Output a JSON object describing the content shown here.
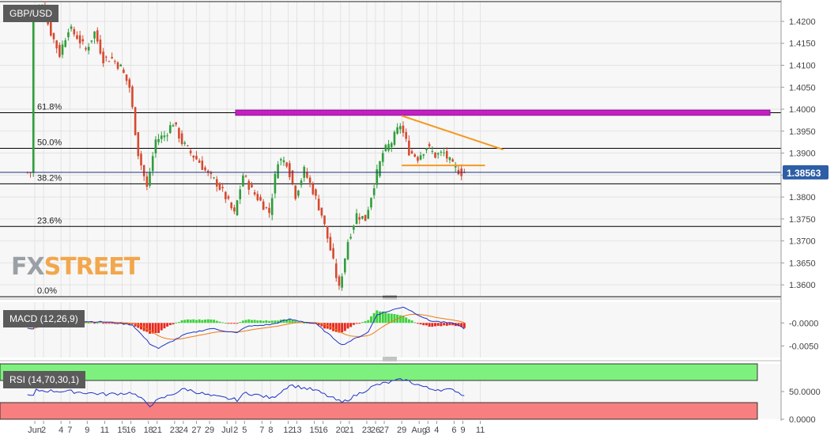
{
  "instrument": "GBP/USD",
  "brand": {
    "part1": "FX",
    "part2": "STREET"
  },
  "colors": {
    "up": "#2e9e3a",
    "down": "#d6492f",
    "fib": "#000000",
    "resistance": "#c41fc4",
    "pattern": "#f39a1e",
    "price_tag": "#2d5ea6",
    "grid": "#e3e3e3",
    "macd_line": "#1f33c8",
    "signal_line": "#f07a12",
    "hist_pos": "#3ed13e",
    "hist_neg": "#e82a1e",
    "rsi_line": "#1f33c8",
    "overbought": "#7ef07e",
    "oversold": "#f77f7f"
  },
  "chart_data": [
    {
      "type": "candlestick",
      "title": "GBP/USD",
      "ylim": [
        1.3575,
        1.4245
      ],
      "y_ticks": [
        "1.4200",
        "1.4150",
        "1.4100",
        "1.4050",
        "1.4000",
        "1.3950",
        "1.3900",
        "1.3850",
        "1.3800",
        "1.3750",
        "1.3700",
        "1.3650",
        "1.3600"
      ],
      "x_tick_labels": [
        "Jun",
        "2",
        "4",
        "7",
        "9",
        "11",
        "15",
        "16",
        "18",
        "21",
        "23",
        "24",
        "27",
        "29",
        "Jul",
        "2",
        "5",
        "7",
        "8",
        "12",
        "13",
        "15",
        "16",
        "20",
        "21",
        "23",
        "26",
        "27",
        "29",
        "Aug",
        "3",
        "4",
        "6",
        "9",
        "11"
      ],
      "last_price": "1.38563",
      "last_price_value": 1.38563,
      "fib_levels": [
        {
          "label": "61.8%",
          "value": 1.3992
        },
        {
          "label": "50.0%",
          "value": 1.3911
        },
        {
          "label": "38.2%",
          "value": 1.383
        },
        {
          "label": "23.6%",
          "value": 1.3733
        },
        {
          "label": "0.0%",
          "value": 1.3573
        }
      ],
      "resistance_zone": [
        1.3986,
        1.3998
      ],
      "triangle": {
        "upper": {
          "from": [
            "Jul 29",
            1.3985
          ],
          "to": [
            "Aug 10",
            1.3908
          ]
        },
        "lower": {
          "from": [
            "Jul 29",
            1.3872
          ],
          "to": [
            "Aug 9",
            1.3872
          ]
        }
      },
      "path_points": [
        [
          "Jun 1",
          1.4215
        ],
        [
          "Jun 2",
          1.4235
        ],
        [
          "Jun 3",
          1.4175
        ],
        [
          "Jun 4",
          1.4125
        ],
        [
          "Jun 7",
          1.4185
        ],
        [
          "Jun 8",
          1.4165
        ],
        [
          "Jun 9",
          1.4135
        ],
        [
          "Jun 10",
          1.4175
        ],
        [
          "Jun 11",
          1.4115
        ],
        [
          "Jun 14",
          1.4115
        ],
        [
          "Jun 15",
          1.4095
        ],
        [
          "Jun 16",
          1.405
        ],
        [
          "Jun 17",
          1.39
        ],
        [
          "Jun 18",
          1.382
        ],
        [
          "Jun 21",
          1.393
        ],
        [
          "Jun 22",
          1.394
        ],
        [
          "Jun 23",
          1.397
        ],
        [
          "Jun 24",
          1.3925
        ],
        [
          "Jun 25",
          1.39
        ],
        [
          "Jun 28",
          1.388
        ],
        [
          "Jun 29",
          1.385
        ],
        [
          "Jun 30",
          1.3832
        ],
        [
          "Jul 1",
          1.38
        ],
        [
          "Jul 2",
          1.376
        ],
        [
          "Jul 5",
          1.385
        ],
        [
          "Jul 6",
          1.3815
        ],
        [
          "Jul 7",
          1.379
        ],
        [
          "Jul 8",
          1.3765
        ],
        [
          "Jul 9",
          1.3885
        ],
        [
          "Jul 12",
          1.388
        ],
        [
          "Jul 13",
          1.3805
        ],
        [
          "Jul 14",
          1.386
        ],
        [
          "Jul 15",
          1.3815
        ],
        [
          "Jul 16",
          1.376
        ],
        [
          "Jul 19",
          1.368
        ],
        [
          "Jul 20",
          1.359
        ],
        [
          "Jul 21",
          1.37
        ],
        [
          "Jul 22",
          1.376
        ],
        [
          "Jul 23",
          1.375
        ],
        [
          "Jul 26",
          1.383
        ],
        [
          "Jul 27",
          1.39
        ],
        [
          "Jul 28",
          1.3925
        ],
        [
          "Jul 29",
          1.3965
        ],
        [
          "Jul 30",
          1.3905
        ],
        [
          "Aug 2",
          1.389
        ],
        [
          "Aug 3",
          1.3915
        ],
        [
          "Aug 4",
          1.3895
        ],
        [
          "Aug 5",
          1.39
        ],
        [
          "Aug 6",
          1.387
        ],
        [
          "Aug 9",
          1.3856
        ]
      ]
    },
    {
      "type": "macd",
      "title": "MACD (12,26,9)",
      "y_ticks": [
        "-0.0000",
        "-0.0050"
      ],
      "ylim": [
        -0.0075,
        0.0045
      ],
      "path_points": [
        [
          "Jun 1",
          0.0002
        ],
        [
          "Jun 7",
          0.0004
        ],
        [
          "Jun 11",
          0.0002
        ],
        [
          "Jun 16",
          -0.0004
        ],
        [
          "Jun 18",
          -0.0045
        ],
        [
          "Jun 21",
          -0.0055
        ],
        [
          "Jun 24",
          -0.0025
        ],
        [
          "Jun 29",
          -0.0012
        ],
        [
          "Jul 2",
          -0.0022
        ],
        [
          "Jul 5",
          -0.0008
        ],
        [
          "Jul 8",
          -0.0003
        ],
        [
          "Jul 12",
          0.0008
        ],
        [
          "Jul 15",
          -0.0002
        ],
        [
          "Jul 20",
          -0.0048
        ],
        [
          "Jul 23",
          -0.002
        ],
        [
          "Jul 26",
          0.0018
        ],
        [
          "Jul 29",
          0.0035
        ],
        [
          "Aug 3",
          0.0005
        ],
        [
          "Aug 6",
          -0.0002
        ],
        [
          "Aug 9",
          -0.0012
        ]
      ]
    },
    {
      "type": "rsi",
      "title": "RSI (14,70,30,1)",
      "y_ticks": [
        "50.0000",
        "0.0000"
      ],
      "ylim": [
        0,
        100
      ],
      "overbought": 70,
      "oversold": 30,
      "path_points": [
        [
          "Jun 1",
          52
        ],
        [
          "Jun 7",
          50
        ],
        [
          "Jun 11",
          45
        ],
        [
          "Jun 16",
          48
        ],
        [
          "Jun 18",
          25
        ],
        [
          "Jun 21",
          35
        ],
        [
          "Jun 24",
          55
        ],
        [
          "Jun 29",
          42
        ],
        [
          "Jul 2",
          35
        ],
        [
          "Jul 5",
          48
        ],
        [
          "Jul 8",
          38
        ],
        [
          "Jul 12",
          62
        ],
        [
          "Jul 15",
          52
        ],
        [
          "Jul 20",
          30
        ],
        [
          "Jul 23",
          55
        ],
        [
          "Jul 26",
          62
        ],
        [
          "Jul 29",
          72
        ],
        [
          "Aug 3",
          55
        ],
        [
          "Aug 6",
          52
        ],
        [
          "Aug 9",
          42
        ]
      ]
    }
  ]
}
